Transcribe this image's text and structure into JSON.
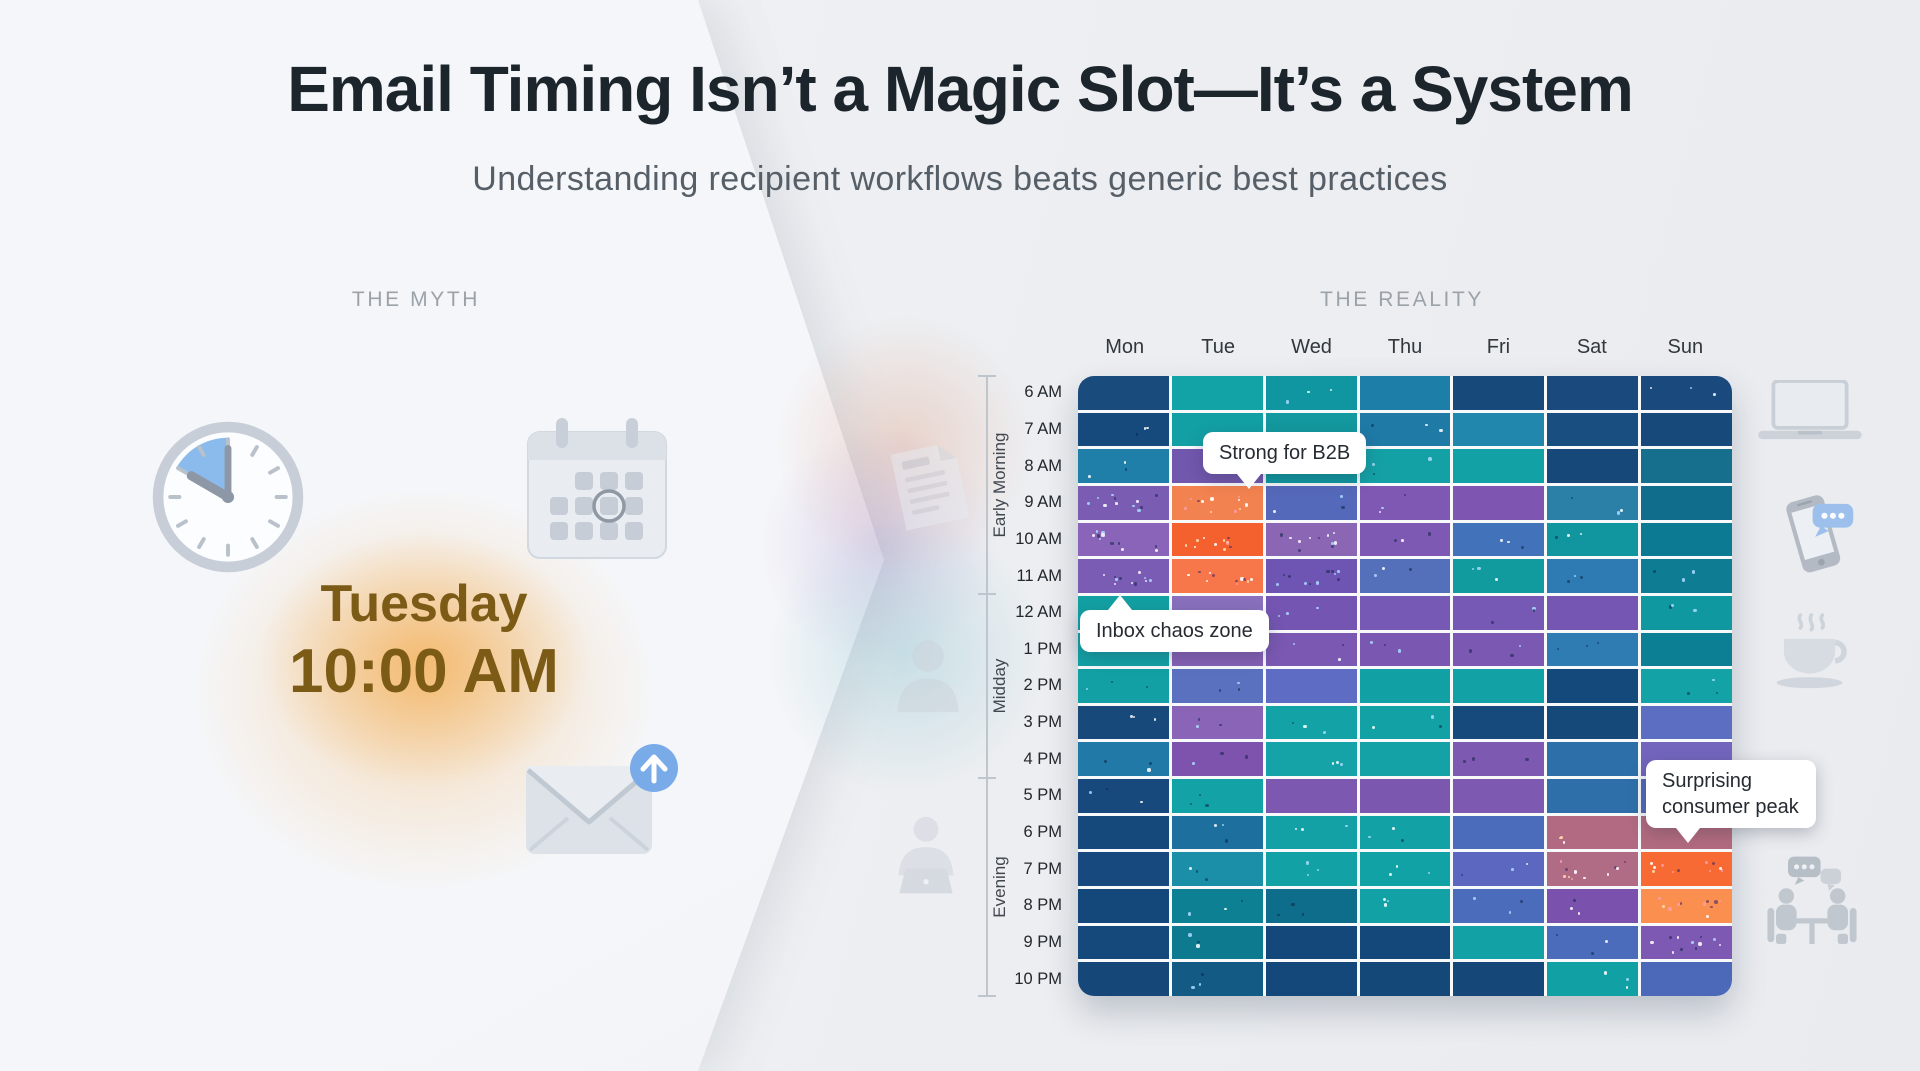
{
  "header": {
    "title": "Email Timing Isn’t a Magic Slot—It’s a System",
    "subtitle": "Understanding recipient workflows beats generic best practices"
  },
  "myth": {
    "section_label": "THE MYTH",
    "day": "Tuesday",
    "time": "10:00 AM",
    "icons": [
      "clock-icon",
      "calendar-icon",
      "envelope-send-icon"
    ],
    "glow_color": "#f39e30",
    "text_color": "#7b5b15"
  },
  "reality": {
    "section_label": "THE REALITY",
    "left_icons": [
      "document-icon",
      "person-icon",
      "person-laptop-icon"
    ],
    "right_icons": [
      "laptop-icon",
      "phone-chat-icon",
      "coffee-icon",
      "meeting-chat-icon"
    ]
  },
  "chart_data": {
    "type": "heatmap",
    "x_labels": [
      "Mon",
      "Tue",
      "Wed",
      "Thu",
      "Fri",
      "Sat",
      "Sun"
    ],
    "y_labels": [
      "6 AM",
      "7 AM",
      "8 AM",
      "9 AM",
      "10 AM",
      "11 AM",
      "12 AM",
      "1 PM",
      "2 PM",
      "3 PM",
      "4 PM",
      "5 PM",
      "6 PM",
      "7 PM",
      "8 PM",
      "9 PM",
      "10 PM"
    ],
    "y_groups": [
      {
        "label": "Early Morning",
        "rows": 6
      },
      {
        "label": "Midday",
        "rows": 5
      },
      {
        "label": "Evening",
        "rows": 6
      }
    ],
    "cell_colors": [
      [
        "#1a4b7d",
        "#12a3a6",
        "#0f96a0",
        "#1d7fa8",
        "#17497b",
        "#1a4a7d",
        "#1a4a7d"
      ],
      [
        "#174a7c",
        "#12a0a5",
        "#13999f",
        "#1f7aa6",
        "#2187ad",
        "#194e80",
        "#174a7a"
      ],
      [
        "#1f7fa9",
        "#7257ae",
        "#0f98a0",
        "#14a1a5",
        "#12a2a5",
        "#16497a",
        "#156f8d"
      ],
      [
        "#7a5cb2",
        "#f2824f",
        "#5569bb",
        "#7e58b2",
        "#7e56b1",
        "#2b80a8",
        "#106e8c"
      ],
      [
        "#8a64b8",
        "#f4602e",
        "#8a66b5",
        "#7e59b3",
        "#4272ba",
        "#11969f",
        "#0d7a94"
      ],
      [
        "#7b5cb4",
        "#f7764a",
        "#6f55b3",
        "#5570bb",
        "#119b9f",
        "#2e7ab3",
        "#0e7d94"
      ],
      [
        "#13a0a3",
        "#8a70bd",
        "#7456b2",
        "#7659b4",
        "#7659b4",
        "#7557b3",
        "#0f98a0"
      ],
      [
        "#12a1a5",
        "#8560b5",
        "#7b58b2",
        "#7a57b1",
        "#7b58b2",
        "#2e7cb2",
        "#0d7f94"
      ],
      [
        "#12a0a4",
        "#5a71c0",
        "#5f6cc3",
        "#11a1a5",
        "#12a2a6",
        "#14497c",
        "#13a2a6"
      ],
      [
        "#17497b",
        "#8a64b6",
        "#13a2a6",
        "#12a1a5",
        "#164a7c",
        "#154979",
        "#5b6ec1"
      ],
      [
        "#2179a8",
        "#7e53ae",
        "#15a3a7",
        "#14a2a6",
        "#7e59b2",
        "#2d6fa9",
        "#7365bd"
      ],
      [
        "#17497c",
        "#13a2a6",
        "#7d58b1",
        "#7b57b0",
        "#7d59b2",
        "#2e6fa9",
        "#5468b8"
      ],
      [
        "#16497b",
        "#1d6f9d",
        "#14a1a5",
        "#12a1a5",
        "#4a6cbb",
        "#b16a81",
        "#b26b7f"
      ],
      [
        "#17497e",
        "#1b8fa8",
        "#12a1a5",
        "#10a2a5",
        "#5c68c0",
        "#b06b85",
        "#f76a33"
      ],
      [
        "#15487a",
        "#0e8094",
        "#0d6d8b",
        "#12a1a5",
        "#4a6cbb",
        "#7b51ae",
        "#fb8f4f"
      ],
      [
        "#16497b",
        "#0d7a90",
        "#14487a",
        "#15487a",
        "#12a1a5",
        "#4a6cba",
        "#7d59b3"
      ],
      [
        "#154879",
        "#135a85",
        "#14487a",
        "#144879",
        "#154879",
        "#11a0a4",
        "#4c68b8"
      ]
    ],
    "speckled_cells": [
      [
        3,
        0,
        2
      ],
      [
        3,
        1,
        2
      ],
      [
        4,
        0,
        2
      ],
      [
        4,
        1,
        2
      ],
      [
        4,
        2,
        2
      ],
      [
        5,
        0,
        2
      ],
      [
        5,
        1,
        2
      ],
      [
        5,
        2,
        2
      ],
      [
        13,
        5,
        2
      ],
      [
        13,
        6,
        2
      ],
      [
        14,
        6,
        2
      ],
      [
        15,
        6,
        2
      ],
      [
        0,
        2,
        1
      ],
      [
        0,
        6,
        1
      ],
      [
        1,
        0,
        1
      ],
      [
        1,
        3,
        1
      ],
      [
        2,
        0,
        1
      ],
      [
        2,
        3,
        1
      ],
      [
        3,
        2,
        1
      ],
      [
        3,
        3,
        1
      ],
      [
        3,
        5,
        1
      ],
      [
        4,
        3,
        1
      ],
      [
        4,
        4,
        1
      ],
      [
        4,
        5,
        1
      ],
      [
        5,
        3,
        1
      ],
      [
        5,
        4,
        1
      ],
      [
        5,
        5,
        1
      ],
      [
        5,
        6,
        1
      ],
      [
        6,
        2,
        1
      ],
      [
        6,
        4,
        1
      ],
      [
        6,
        6,
        1
      ],
      [
        7,
        2,
        1
      ],
      [
        7,
        3,
        1
      ],
      [
        7,
        4,
        1
      ],
      [
        7,
        5,
        1
      ],
      [
        8,
        0,
        1
      ],
      [
        8,
        1,
        1
      ],
      [
        8,
        6,
        1
      ],
      [
        9,
        0,
        1
      ],
      [
        9,
        1,
        1
      ],
      [
        9,
        2,
        1
      ],
      [
        9,
        3,
        1
      ],
      [
        10,
        0,
        1
      ],
      [
        10,
        1,
        1
      ],
      [
        10,
        2,
        1
      ],
      [
        10,
        4,
        1
      ],
      [
        11,
        0,
        1
      ],
      [
        11,
        1,
        1
      ],
      [
        12,
        1,
        1
      ],
      [
        12,
        2,
        1
      ],
      [
        12,
        3,
        1
      ],
      [
        12,
        5,
        1
      ],
      [
        13,
        1,
        1
      ],
      [
        13,
        2,
        1
      ],
      [
        13,
        3,
        1
      ],
      [
        13,
        4,
        1
      ],
      [
        14,
        1,
        1
      ],
      [
        14,
        2,
        1
      ],
      [
        14,
        3,
        1
      ],
      [
        14,
        4,
        1
      ],
      [
        14,
        5,
        1
      ],
      [
        15,
        1,
        1
      ],
      [
        15,
        5,
        1
      ],
      [
        16,
        1,
        1
      ],
      [
        16,
        5,
        1
      ]
    ],
    "annotations": [
      {
        "text": "Strong for B2B",
        "target": "Tue 9 AM",
        "pointer": "down"
      },
      {
        "text": "Inbox chaos zone",
        "target": "Mon 11 AM",
        "pointer": "up"
      },
      {
        "text": "Surprising consumer peak",
        "target": "Sun 7 PM",
        "pointer": "down"
      }
    ],
    "legend_position": "none",
    "grid": true,
    "peak_color": "#f4602e",
    "low_color": "#154879"
  }
}
